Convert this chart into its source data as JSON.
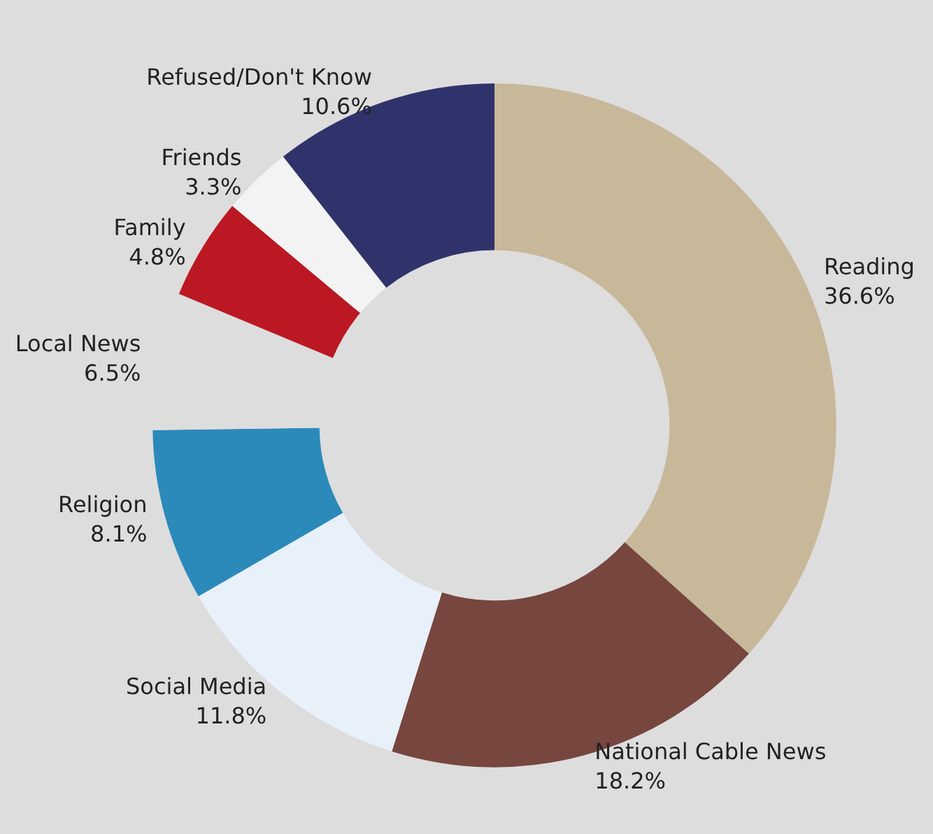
{
  "chart_data": {
    "type": "donut",
    "categories": [
      "Reading",
      "National Cable News",
      "Social Media",
      "Religion",
      "Local News",
      "Family",
      "Friends",
      "Refused/Don't Know"
    ],
    "values": [
      36.6,
      18.2,
      11.8,
      8.1,
      6.5,
      4.8,
      3.3,
      10.6
    ],
    "value_labels": [
      "36.6%",
      "18.2%",
      "11.8%",
      "8.1%",
      "6.5%",
      "4.8%",
      "3.3%",
      "10.6%"
    ],
    "colors": [
      "#c8b89a",
      "#77463f",
      "#e8f0fa",
      "#2b8aba",
      "#dddddd",
      "#bb1823",
      "#f3f3f3",
      "#30336b"
    ],
    "legend": false
  }
}
